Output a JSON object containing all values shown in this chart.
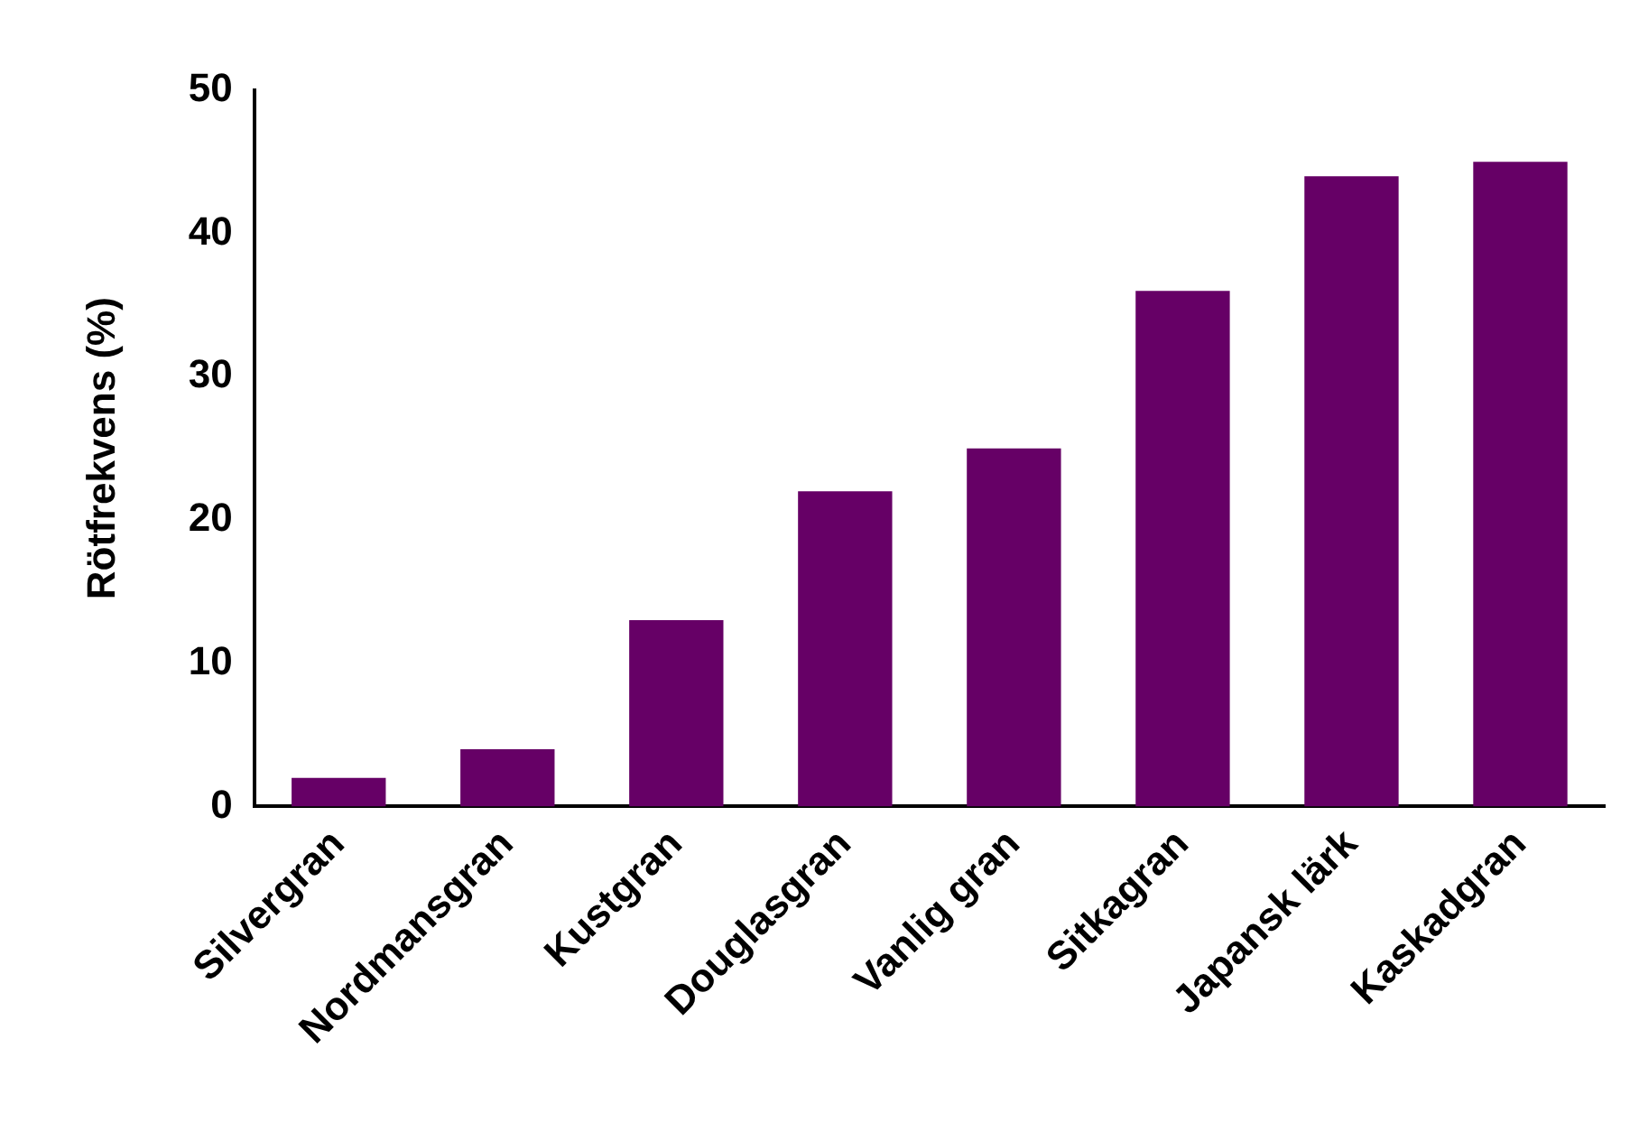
{
  "chart_data": {
    "type": "bar",
    "ylabel": "Rötfrekvens (%)",
    "categories": [
      "Silvergran",
      "Nordmansgran",
      "Kustgran",
      "Douglasgran",
      "Vanlig gran",
      "Sitkagran",
      "Japansk lärk",
      "Kaskadgran"
    ],
    "values": [
      2,
      4,
      13,
      22,
      25,
      36,
      44,
      45
    ],
    "color": "#660066",
    "ylim": [
      0,
      50
    ],
    "yticks": [
      0,
      10,
      20,
      30,
      40,
      50
    ],
    "grid": false,
    "legend": false
  }
}
